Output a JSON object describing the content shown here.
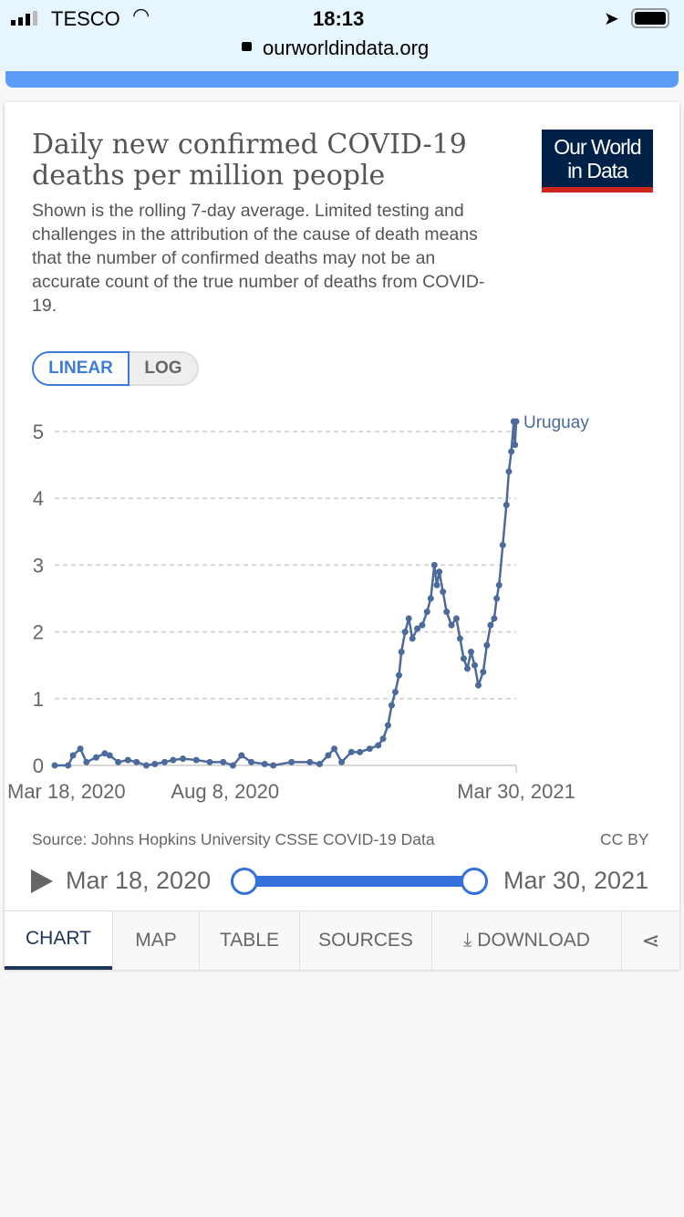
{
  "status_bar": {
    "carrier": "TESCO",
    "time": "18:13",
    "url": "ourworldindata.org"
  },
  "header": {
    "title": "Daily new confirmed COVID-19 deaths per million people",
    "subtitle": "Shown is the rolling 7-day average. Limited testing and challenges in the attribution of the cause of death means that the number of confirmed deaths may not be an accurate count of the true number of deaths from COVID-19.",
    "logo": "Our World in Data"
  },
  "scale_toggle": {
    "linear": "LINEAR",
    "log": "LOG",
    "selected": "LINEAR"
  },
  "chart_data": {
    "type": "line",
    "title": "Daily new confirmed COVID-19 deaths per million people",
    "xlabel": "",
    "ylabel": "",
    "ylim": [
      0,
      5.2
    ],
    "yticks": [
      "0",
      "1",
      "2",
      "3",
      "4",
      "5"
    ],
    "xticks": [
      {
        "day": 0,
        "label": "Mar 18, 2020"
      },
      {
        "day": 143,
        "label": "Aug 8, 2020"
      },
      {
        "day": 378,
        "label": "Mar 30, 2021"
      }
    ],
    "x_unit": "days since Mar 18, 2020",
    "grid": true,
    "series": [
      {
        "name": "Uruguay",
        "color": "#4c6a9c",
        "x": [
          0,
          11,
          15,
          21,
          26,
          34,
          41,
          45,
          52,
          60,
          67,
          75,
          82,
          90,
          97,
          105,
          116,
          127,
          138,
          146,
          153,
          161,
          172,
          179,
          194,
          209,
          217,
          224,
          229,
          235,
          243,
          250,
          258,
          265,
          269,
          273,
          276,
          279,
          282,
          284,
          287,
          290,
          293,
          297,
          301,
          305,
          308,
          311,
          313,
          315,
          318,
          321,
          325,
          329,
          332,
          335,
          338,
          341,
          344,
          347,
          351,
          354,
          357,
          360,
          362,
          364,
          367,
          370,
          372,
          374,
          376,
          377,
          378
        ],
        "values": [
          0,
          0,
          0.15,
          0.25,
          0.05,
          0.12,
          0.18,
          0.15,
          0.05,
          0.08,
          0.05,
          0,
          0.02,
          0.05,
          0.08,
          0.1,
          0.08,
          0.05,
          0.05,
          0,
          0.15,
          0.05,
          0.02,
          0,
          0.05,
          0.05,
          0.02,
          0.15,
          0.25,
          0.05,
          0.2,
          0.2,
          0.25,
          0.3,
          0.4,
          0.6,
          0.9,
          1.1,
          1.35,
          1.7,
          2.0,
          2.2,
          1.9,
          2.05,
          2.1,
          2.3,
          2.5,
          3.0,
          2.7,
          2.9,
          2.6,
          2.3,
          2.1,
          2.2,
          1.9,
          1.6,
          1.45,
          1.7,
          1.5,
          1.2,
          1.4,
          1.8,
          2.1,
          2.2,
          2.5,
          2.7,
          3.3,
          3.9,
          4.4,
          4.7,
          5.15,
          4.8,
          5.15
        ]
      }
    ]
  },
  "footer": {
    "source": "Source: Johns Hopkins University CSSE COVID-19 Data",
    "license": "CC BY"
  },
  "timeline": {
    "start": "Mar 18, 2020",
    "end": "Mar 30, 2021"
  },
  "tabs": [
    "CHART",
    "MAP",
    "TABLE",
    "SOURCES",
    "DOWNLOAD"
  ],
  "active_tab": "CHART"
}
